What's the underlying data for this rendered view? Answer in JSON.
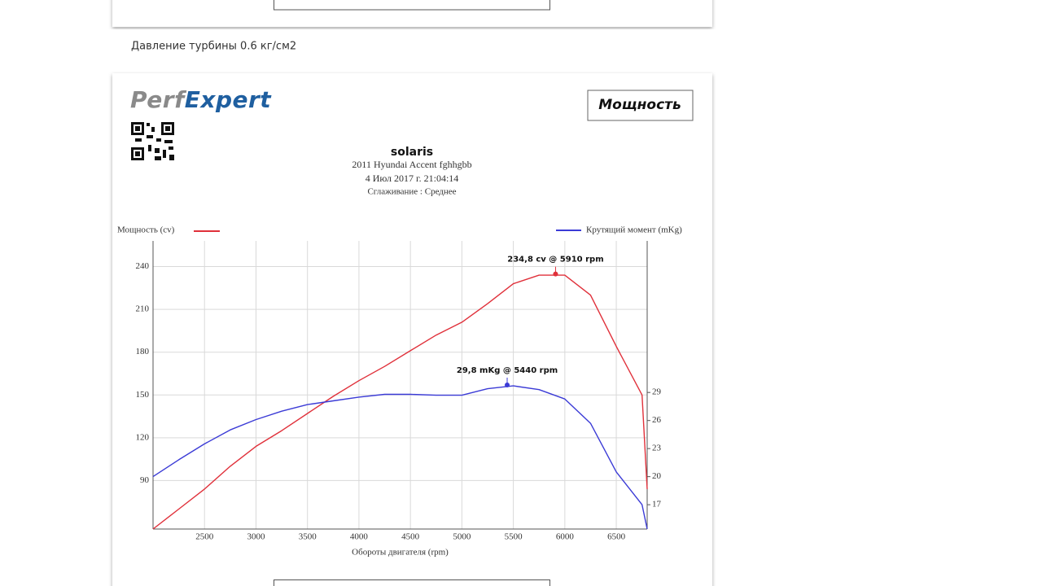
{
  "page": {
    "caption": "Давление турбины 0.6 кг/см2",
    "logo": [
      "Perf",
      "Expert"
    ],
    "badge": "Мощность",
    "title": "solaris",
    "vehicle": "2011 Hyundai Accent fghhgbb",
    "date": "4 Июл 2017 г. 21:04:14",
    "smoothing": "Сглаживание : Среднее"
  },
  "chart_data": {
    "type": "line",
    "x": [
      2000,
      2250,
      2500,
      2750,
      3000,
      3250,
      3500,
      3750,
      4000,
      4250,
      4500,
      4750,
      5000,
      5250,
      5500,
      5750,
      6000,
      6250,
      6500,
      6750,
      6800
    ],
    "xlim": [
      2000,
      6800
    ],
    "xticks": [
      2500,
      3000,
      3500,
      4000,
      4500,
      5000,
      5500,
      6000,
      6500
    ],
    "xlabel": "Обороты двигателя (rpm)",
    "ylim": [
      56,
      258
    ],
    "yticks": [
      90,
      120,
      150,
      180,
      210,
      240
    ],
    "y2lim": [
      14.4,
      45.2
    ],
    "y2ticks": [
      17,
      20,
      23,
      26,
      29
    ],
    "grid": true,
    "series": [
      {
        "name": "Мощность (cv)",
        "color": "#e0303a",
        "values": [
          56,
          70,
          84,
          100,
          114,
          125,
          137,
          149,
          160,
          170,
          181,
          192,
          201,
          214,
          228,
          234,
          234,
          220,
          184,
          150,
          84
        ]
      },
      {
        "name": "Крутящий момент (mKg)",
        "color": "#3b3bd6",
        "axis": "y2",
        "values": [
          20.0,
          21.8,
          23.5,
          25.0,
          26.1,
          27.0,
          27.7,
          28.1,
          28.5,
          28.8,
          28.8,
          28.7,
          28.7,
          29.4,
          29.7,
          29.3,
          28.3,
          25.7,
          20.5,
          17.0,
          14.4
        ]
      }
    ],
    "annotations": [
      {
        "text": "234,8 cv @ 5910 rpm",
        "x": 5910,
        "y": 234.8
      },
      {
        "text": "29,8 mKg @ 5440 rpm",
        "x": 5440,
        "y": 29.8,
        "axis": "y2"
      }
    ]
  }
}
